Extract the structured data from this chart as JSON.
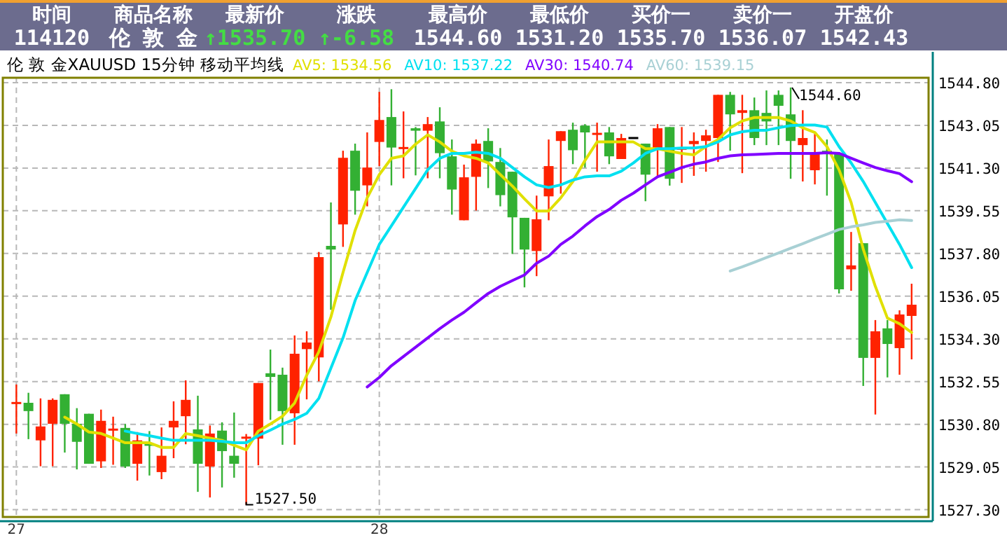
{
  "chart_data": {
    "type": "candlestick",
    "title": "伦 敦 金XAUUSD 15分钟 移动平均线",
    "categories": [
      "27",
      null,
      null,
      null,
      null,
      null,
      null,
      null,
      null,
      null,
      null,
      null,
      null,
      null,
      null,
      null,
      null,
      null,
      null,
      null,
      null,
      null,
      null,
      null,
      null,
      null,
      null,
      null,
      null,
      null,
      "28",
      null,
      null,
      null,
      null,
      null,
      null,
      null,
      null,
      null,
      null,
      null,
      null,
      null,
      null,
      null,
      null,
      null,
      null,
      null,
      null,
      null,
      null,
      null,
      null,
      null,
      null,
      null,
      null,
      null,
      null,
      null,
      null,
      null,
      null,
      null,
      null,
      null,
      null,
      null,
      null,
      null,
      null,
      null,
      null
    ],
    "ohlc": [
      [
        1531.59,
        1532.43,
        1530.42,
        1531.67
      ],
      [
        1531.68,
        1532.09,
        1530.19,
        1531.34
      ],
      [
        1530.14,
        1531.86,
        1529.08,
        1530.71
      ],
      [
        1530.82,
        1531.86,
        1529.08,
        1531.8
      ],
      [
        1532.03,
        1532.03,
        1529.64,
        1530.82
      ],
      [
        1530.82,
        1531.46,
        1528.95,
        1530.08
      ],
      [
        1531.23,
        1531.23,
        1529.18,
        1529.18
      ],
      [
        1529.28,
        1531.4,
        1529.01,
        1530.94
      ],
      [
        1530.54,
        1531.11,
        1529.14,
        1530.58
      ],
      [
        1530.65,
        1530.81,
        1529.01,
        1529.07
      ],
      [
        1529.18,
        1530.48,
        1528.49,
        1530.14
      ],
      [
        1529.96,
        1530.52,
        1528.7,
        1529.93
      ],
      [
        1528.84,
        1530.67,
        1528.55,
        1529.51
      ],
      [
        1530.67,
        1531.74,
        1529.41,
        1530.94
      ],
      [
        1531.13,
        1532.6,
        1529.98,
        1531.8
      ],
      [
        1530.59,
        1531.97,
        1528.03,
        1529.18
      ],
      [
        1529.07,
        1530.75,
        1527.8,
        1530.42
      ],
      [
        1530.54,
        1530.88,
        1528.21,
        1529.7
      ],
      [
        1529.51,
        1531.28,
        1528.61,
        1529.18
      ],
      [
        1530.17,
        1530.4,
        1527.5,
        1530.25
      ],
      [
        1530.21,
        1532.49,
        1529.12,
        1532.49
      ],
      [
        1532.89,
        1533.86,
        1530.98,
        1532.74
      ],
      [
        1532.83,
        1533.12,
        1529.96,
        1531.34
      ],
      [
        1531.25,
        1534.44,
        1529.96,
        1533.69
      ],
      [
        1533.88,
        1534.61,
        1531.82,
        1534.15
      ],
      [
        1533.54,
        1537.86,
        1532.56,
        1537.65
      ],
      [
        1538.11,
        1539.89,
        1535.49,
        1537.96
      ],
      [
        1538.99,
        1542.01,
        1538.07,
        1541.72
      ],
      [
        1542.01,
        1542.3,
        1539.39,
        1540.37
      ],
      [
        1540.59,
        1542.76,
        1539.73,
        1541.32
      ],
      [
        1542.37,
        1544.42,
        1541.38,
        1543.27
      ],
      [
        1543.39,
        1544.53,
        1540.59,
        1542.14
      ],
      [
        1542.09,
        1543.62,
        1540.88,
        1542.12
      ],
      [
        1542.93,
        1542.98,
        1541.0,
        1542.83
      ],
      [
        1542.83,
        1543.39,
        1540.88,
        1543.1
      ],
      [
        1543.21,
        1543.79,
        1540.88,
        1541.91
      ],
      [
        1541.78,
        1542.47,
        1539.39,
        1540.42
      ],
      [
        1539.16,
        1541.44,
        1539.16,
        1540.92
      ],
      [
        1540.94,
        1542.47,
        1539.56,
        1542.3
      ],
      [
        1542.41,
        1542.93,
        1540.48,
        1541.57
      ],
      [
        1541.55,
        1542.12,
        1539.73,
        1540.19
      ],
      [
        1541.15,
        1541.15,
        1537.78,
        1539.28
      ],
      [
        1539.26,
        1539.26,
        1536.41,
        1537.96
      ],
      [
        1537.9,
        1540.17,
        1536.87,
        1539.2
      ],
      [
        1540.14,
        1542.47,
        1539.16,
        1541.38
      ],
      [
        1542.41,
        1542.81,
        1540.25,
        1542.81
      ],
      [
        1542.87,
        1543.16,
        1541.46,
        1542.03
      ],
      [
        1543.04,
        1543.1,
        1541.32,
        1542.76
      ],
      [
        1542.66,
        1543.16,
        1541.15,
        1542.7
      ],
      [
        1542.76,
        1542.98,
        1541.46,
        1541.78
      ],
      [
        1541.67,
        1542.7,
        1541.67,
        1542.53
      ],
      [
        1542.53,
        1542.53,
        1542.53,
        1542.53
      ],
      [
        1542.3,
        1542.3,
        1539.94,
        1541.03
      ],
      [
        1542.12,
        1543.1,
        1540.98,
        1542.93
      ],
      [
        1542.98,
        1542.98,
        1540.58,
        1540.86
      ],
      [
        1542.03,
        1542.98,
        1540.69,
        1542.09
      ],
      [
        1542.28,
        1542.76,
        1540.98,
        1542.41
      ],
      [
        1542.41,
        1542.87,
        1541.15,
        1542.64
      ],
      [
        1542.53,
        1544.3,
        1541.55,
        1544.3
      ],
      [
        1544.3,
        1544.42,
        1542.01,
        1543.5
      ],
      [
        1543.56,
        1544.3,
        1541.09,
        1543.67
      ],
      [
        1543.67,
        1544.19,
        1542.24,
        1542.53
      ],
      [
        1543.56,
        1544.48,
        1542.24,
        1543.21
      ],
      [
        1544.3,
        1544.48,
        1542.24,
        1543.85
      ],
      [
        1543.5,
        1544.6,
        1540.86,
        1542.41
      ],
      [
        1542.24,
        1543.67,
        1540.75,
        1542.53
      ],
      [
        1541.21,
        1542.7,
        1540.63,
        1541.95
      ],
      [
        1542.01,
        1542.47,
        1540.17,
        1541.9
      ],
      [
        1541.9,
        1541.95,
        1536.16,
        1536.33
      ],
      [
        1537.15,
        1538.68,
        1536.27,
        1537.31
      ],
      [
        1538.22,
        1538.22,
        1532.37,
        1533.52
      ],
      [
        1533.52,
        1535.07,
        1531.2,
        1534.61
      ],
      [
        1534.73,
        1535.07,
        1532.72,
        1534.09
      ],
      [
        1533.92,
        1535.47,
        1532.83,
        1535.3
      ],
      [
        1535.24,
        1536.56,
        1533.46,
        1535.7
      ]
    ],
    "colors": [
      "#ff2200",
      "#33b033",
      "#ff2200",
      "#ff2200",
      "#33b033",
      "#33b033",
      "#33b033",
      "#ff2200",
      "#ff2200",
      "#33b033",
      "#ff2200",
      "#33b033",
      "#ff2200",
      "#ff2200",
      "#ff2200",
      "#33b033",
      "#ff2200",
      "#33b033",
      "#33b033",
      "#ff2200",
      "#ff2200",
      "#33b033",
      "#33b033",
      "#ff2200",
      "#ff2200",
      "#ff2200",
      "#33b033",
      "#ff2200",
      "#33b033",
      "#ff2200",
      "#ff2200",
      "#33b033",
      "#ff2200",
      "#33b033",
      "#ff2200",
      "#33b033",
      "#33b033",
      "#ff2200",
      "#ff2200",
      "#33b033",
      "#33b033",
      "#33b033",
      "#33b033",
      "#ff2200",
      "#ff2200",
      "#ff2200",
      "#33b033",
      "#33b033",
      "#ff2200",
      "#33b033",
      "#ff2200",
      "#000000",
      "#33b033",
      "#ff2200",
      "#33b033",
      "#ff2200",
      "#ff2200",
      "#ff2200",
      "#ff2200",
      "#33b033",
      "#ff2200",
      "#33b033",
      "#33b033",
      "#33b033",
      "#33b033",
      "#ff2200",
      "#ff2200",
      "#33b033",
      "#33b033",
      "#ff2200",
      "#33b033",
      "#ff2200",
      "#33b033",
      "#ff2200",
      "#ff2200"
    ],
    "series": [
      {
        "name": "AV5: 1534.56",
        "type": "line",
        "color": "#e0e000",
        "values": [
          null,
          null,
          null,
          null,
          1531.09,
          1530.81,
          1530.48,
          1530.42,
          1530.23,
          1530.04,
          1530.04,
          1530.04,
          1529.85,
          1529.85,
          1530.42,
          1530.33,
          1530.23,
          1530.14,
          1529.94,
          1529.75,
          1530.52,
          1530.81,
          1531.13,
          1531.67,
          1532.81,
          1533.77,
          1535.2,
          1537.02,
          1538.74,
          1540.08,
          1541.03,
          1541.7,
          1541.8,
          1542.28,
          1542.66,
          1542.37,
          1541.99,
          1541.8,
          1541.7,
          1541.51,
          1541.03,
          1540.56,
          1540.04,
          1539.54,
          1539.54,
          1540.08,
          1540.75,
          1541.61,
          1542.37,
          1542.37,
          1542.37,
          1542.37,
          1542.09,
          1542.09,
          1541.99,
          1541.9,
          1541.84,
          1542.18,
          1542.47,
          1542.95,
          1543.23,
          1543.37,
          1543.37,
          1543.37,
          1543.23,
          1542.95,
          1542.76,
          1542.18,
          1541.23,
          1539.89,
          1537.98,
          1536.45,
          1535.15,
          1534.92,
          1534.56
        ]
      },
      {
        "name": "AV10: 1537.22",
        "type": "line",
        "color": "#00e0f0",
        "values": [
          null,
          null,
          null,
          null,
          null,
          null,
          null,
          null,
          null,
          1530.52,
          1530.42,
          1530.33,
          1530.23,
          1530.14,
          1530.14,
          1530.14,
          1530.14,
          1530.1,
          1530.04,
          1530.04,
          1530.33,
          1530.56,
          1530.81,
          1531.0,
          1531.25,
          1531.86,
          1533.1,
          1534.34,
          1535.87,
          1537.02,
          1538.17,
          1538.93,
          1539.7,
          1540.46,
          1541.23,
          1541.7,
          1541.9,
          1541.9,
          1541.95,
          1541.9,
          1541.7,
          1541.32,
          1540.94,
          1540.61,
          1540.5,
          1540.61,
          1540.81,
          1540.94,
          1540.98,
          1540.98,
          1541.17,
          1541.51,
          1541.9,
          1542.09,
          1542.09,
          1542.12,
          1542.12,
          1542.18,
          1542.37,
          1542.66,
          1542.79,
          1542.85,
          1542.85,
          1542.95,
          1543.04,
          1543.06,
          1543.06,
          1542.98,
          1542.18,
          1541.51,
          1540.75,
          1539.89,
          1539.03,
          1538.17,
          1537.22
        ]
      },
      {
        "name": "AV30: 1540.74",
        "type": "line",
        "color": "#8000ff",
        "values": [
          null,
          null,
          null,
          null,
          null,
          null,
          null,
          null,
          null,
          null,
          null,
          null,
          null,
          null,
          null,
          null,
          null,
          null,
          null,
          null,
          null,
          null,
          null,
          null,
          null,
          null,
          null,
          null,
          null,
          1532.33,
          1532.72,
          1533.2,
          1533.58,
          1533.96,
          1534.34,
          1534.72,
          1535.07,
          1535.39,
          1535.78,
          1536.16,
          1536.45,
          1536.69,
          1536.92,
          1537.4,
          1537.69,
          1538.17,
          1538.51,
          1538.93,
          1539.31,
          1539.6,
          1539.98,
          1540.27,
          1540.61,
          1540.94,
          1541.13,
          1541.32,
          1541.46,
          1541.55,
          1541.7,
          1541.8,
          1541.84,
          1541.86,
          1541.88,
          1541.9,
          1541.9,
          1541.9,
          1541.9,
          1541.93,
          1541.9,
          1541.7,
          1541.51,
          1541.32,
          1541.19,
          1541.07,
          1540.74
        ]
      },
      {
        "name": "AV60: 1539.15",
        "type": "line",
        "color": "#a8d0d4",
        "values": [
          null,
          null,
          null,
          null,
          null,
          null,
          null,
          null,
          null,
          null,
          null,
          null,
          null,
          null,
          null,
          null,
          null,
          null,
          null,
          null,
          null,
          null,
          null,
          null,
          null,
          null,
          null,
          null,
          null,
          null,
          null,
          null,
          null,
          null,
          null,
          null,
          null,
          null,
          null,
          null,
          null,
          null,
          null,
          null,
          null,
          null,
          null,
          null,
          null,
          null,
          null,
          null,
          null,
          null,
          null,
          null,
          null,
          null,
          null,
          1537.08,
          1537.25,
          1537.44,
          1537.63,
          1537.82,
          1538.01,
          1538.2,
          1538.4,
          1538.59,
          1538.78,
          1538.89,
          1538.97,
          1539.07,
          1539.12,
          1539.18,
          1539.15
        ]
      }
    ],
    "ylim": [
      1527.0,
      1545.0
    ],
    "yticks": [
      {
        "value": 1544.8,
        "label": "1544.80"
      },
      {
        "value": 1543.05,
        "label": "1543.05"
      },
      {
        "value": 1541.3,
        "label": "1541.30"
      },
      {
        "value": 1539.55,
        "label": "1539.55"
      },
      {
        "value": 1537.8,
        "label": "1537.80"
      },
      {
        "value": 1536.05,
        "label": "1536.05"
      },
      {
        "value": 1534.3,
        "label": "1534.30"
      },
      {
        "value": 1532.55,
        "label": "1532.55"
      },
      {
        "value": 1530.8,
        "label": "1530.80"
      },
      {
        "value": 1529.05,
        "label": "1529.05"
      },
      {
        "value": 1527.3,
        "label": "1527.30"
      }
    ],
    "grid": true,
    "legend": "top",
    "line_style": "solid",
    "marker": "none",
    "annotations": [
      "时间",
      "商品名称",
      "最新价",
      "涨跌",
      "最高价",
      "最低价",
      "买价一",
      "卖价一",
      "开盘价",
      "114120",
      "伦 敦 金",
      "↑1535.70",
      "↑-6.58",
      "1544.60",
      "1531.20",
      "1535.70",
      "1536.07",
      "1542.43",
      "1544.60",
      "1527.50"
    ]
  }
}
